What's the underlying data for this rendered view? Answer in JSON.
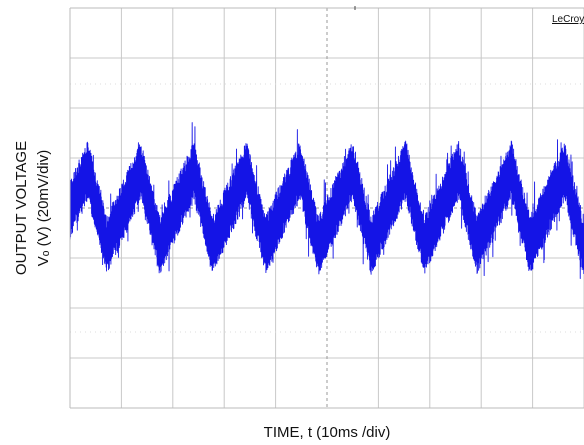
{
  "chart_data": {
    "type": "line",
    "title": "",
    "xlabel": "TIME, t (10ms /div)",
    "ylabel_line1": "OUTPUT VOLTAGE",
    "ylabel_line2": "Vₒ (V) (20mV/div)",
    "brand": "LeCroy",
    "x_unit": "ms",
    "y_unit": "mV",
    "x_per_div": 10,
    "y_per_div": 20,
    "xlim": [
      0,
      100
    ],
    "ylim": [
      -80,
      80
    ],
    "grid": true,
    "legend": "none",
    "series": [
      {
        "color": "#1414e6",
        "ripple_period_ms": 10.3,
        "ripple_peak_to_peak_mV": 30,
        "noise_band_mV": 24,
        "peak_times_ms": [
          3.5,
          13.8,
          24.1,
          34.4,
          44.7,
          55.0,
          65.3,
          75.6,
          85.9,
          96.2
        ]
      }
    ]
  }
}
